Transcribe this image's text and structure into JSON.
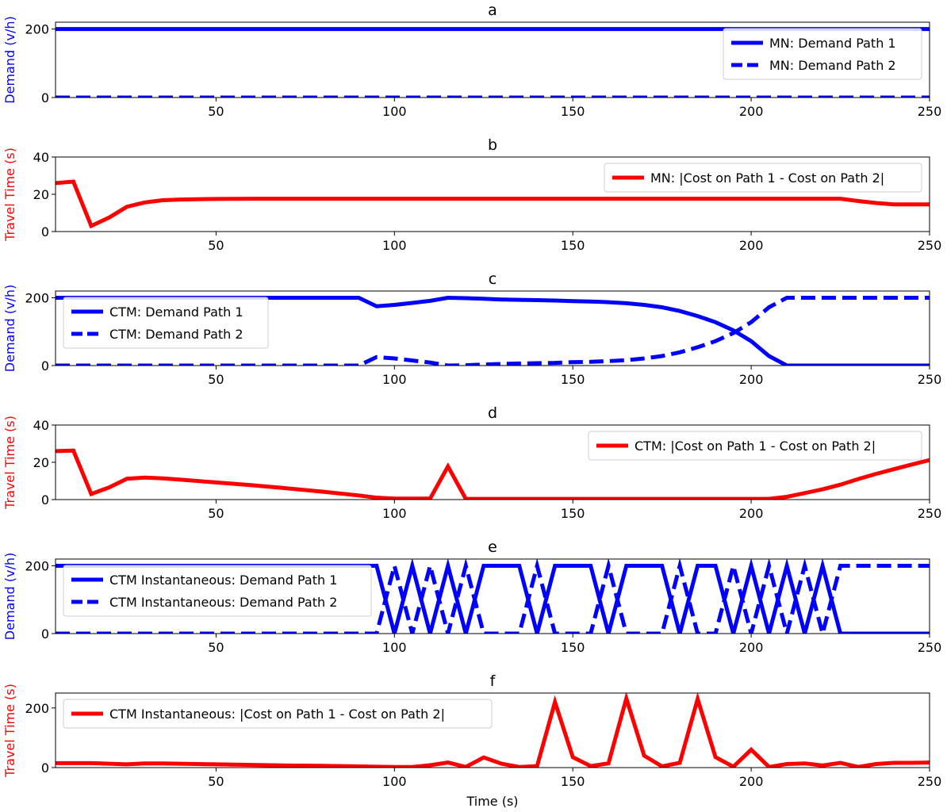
{
  "colors": {
    "blue": "#0000ff",
    "red": "#ff0000",
    "axis": "#000000",
    "legend_border": "#cccccc"
  },
  "chart_data": [
    {
      "type": "line",
      "title": "a",
      "xlabel": "",
      "ylabel": "Demand (v/h)",
      "ylabel_color": "#0000ff",
      "xlim": [
        5,
        250
      ],
      "ylim": [
        0,
        220
      ],
      "xticks": [
        50,
        100,
        150,
        200,
        250
      ],
      "yticks": [
        0,
        200
      ],
      "legend_position": "upper right",
      "series": [
        {
          "name": "MN: Demand Path 1",
          "color": "#0000ff",
          "dash": "solid",
          "x": [
            5,
            250
          ],
          "y": [
            200,
            200
          ]
        },
        {
          "name": "MN: Demand Path 2",
          "color": "#0000ff",
          "dash": "dashed",
          "x": [
            5,
            250
          ],
          "y": [
            0,
            0
          ]
        }
      ]
    },
    {
      "type": "line",
      "title": "b",
      "xlabel": "",
      "ylabel": "Travel Time (s)",
      "ylabel_color": "#ff0000",
      "xlim": [
        5,
        250
      ],
      "ylim": [
        0,
        40
      ],
      "xticks": [
        50,
        100,
        150,
        200,
        250
      ],
      "yticks": [
        0,
        20,
        40
      ],
      "legend_position": "upper right",
      "series": [
        {
          "name": "MN: |Cost on Path 1 - Cost on Path 2|",
          "color": "#ff0000",
          "dash": "solid",
          "x": [
            5,
            10,
            15,
            20,
            25,
            30,
            35,
            40,
            50,
            60,
            100,
            150,
            200,
            225,
            230,
            235,
            240,
            250
          ],
          "y": [
            26,
            26.8,
            3,
            7.5,
            13.3,
            15.6,
            16.8,
            17.2,
            17.5,
            17.6,
            17.6,
            17.6,
            17.6,
            17.6,
            16.4,
            15.3,
            14.6,
            14.6
          ]
        }
      ]
    },
    {
      "type": "line",
      "title": "c",
      "xlabel": "",
      "ylabel": "Demand (v/h)",
      "ylabel_color": "#0000ff",
      "xlim": [
        5,
        250
      ],
      "ylim": [
        0,
        220
      ],
      "xticks": [
        50,
        100,
        150,
        200,
        250
      ],
      "yticks": [
        0,
        200
      ],
      "legend_position": "upper left",
      "series": [
        {
          "name": "CTM: Demand Path 1",
          "color": "#0000ff",
          "dash": "solid",
          "x": [
            5,
            90,
            95,
            100,
            105,
            110,
            115,
            120,
            125,
            130,
            135,
            140,
            145,
            150,
            155,
            160,
            165,
            170,
            175,
            180,
            185,
            190,
            195,
            200,
            205,
            210,
            250
          ],
          "y": [
            200,
            200,
            175,
            179,
            185,
            191,
            200,
            199,
            197,
            195,
            194,
            193,
            192,
            190,
            189,
            187,
            184,
            179,
            172,
            161,
            146,
            128,
            104,
            72,
            28,
            0,
            0
          ]
        },
        {
          "name": "CTM: Demand Path 2",
          "color": "#0000ff",
          "dash": "dashed",
          "x": [
            5,
            90,
            95,
            100,
            105,
            110,
            115,
            120,
            125,
            130,
            135,
            140,
            145,
            150,
            155,
            160,
            165,
            170,
            175,
            180,
            185,
            190,
            195,
            200,
            205,
            210,
            250
          ],
          "y": [
            0,
            0,
            25,
            21,
            15,
            9,
            0,
            1,
            3,
            5,
            6,
            7,
            8,
            10,
            11,
            13,
            16,
            21,
            28,
            39,
            54,
            72,
            96,
            128,
            172,
            200,
            200
          ]
        }
      ]
    },
    {
      "type": "line",
      "title": "d",
      "xlabel": "",
      "ylabel": "Travel Time (s)",
      "ylabel_color": "#ff0000",
      "xlim": [
        5,
        250
      ],
      "ylim": [
        0,
        40
      ],
      "xticks": [
        50,
        100,
        150,
        200,
        250
      ],
      "yticks": [
        0,
        20,
        40
      ],
      "legend_position": "upper right",
      "series": [
        {
          "name": "CTM: |Cost on Path 1 - Cost on Path 2|",
          "color": "#ff0000",
          "dash": "solid",
          "x": [
            5,
            10,
            15,
            20,
            25,
            30,
            35,
            40,
            50,
            60,
            70,
            80,
            90,
            95,
            100,
            105,
            110,
            115,
            120,
            150,
            200,
            205,
            210,
            215,
            220,
            225,
            230,
            235,
            240,
            245,
            250
          ],
          "y": [
            26,
            26.3,
            3,
            6.5,
            11.2,
            11.8,
            11.4,
            10.7,
            9.2,
            7.7,
            6.0,
            4.2,
            2.2,
            1.0,
            0.5,
            0.5,
            0.5,
            17.8,
            0.4,
            0.4,
            0.4,
            0.4,
            1.5,
            3.5,
            5.5,
            8,
            11,
            13.8,
            16.3,
            18.8,
            21.2
          ]
        }
      ]
    },
    {
      "type": "line",
      "title": "e",
      "xlabel": "",
      "ylabel": "Demand (v/h)",
      "ylabel_color": "#0000ff",
      "xlim": [
        5,
        250
      ],
      "ylim": [
        0,
        220
      ],
      "xticks": [
        50,
        100,
        150,
        200,
        250
      ],
      "yticks": [
        0,
        200
      ],
      "legend_position": "upper left",
      "series": [
        {
          "name": "CTM Instantaneous: Demand Path 1",
          "color": "#0000ff",
          "dash": "solid",
          "x": [
            5,
            95,
            100,
            105,
            110,
            115,
            120,
            125,
            135,
            140,
            145,
            155,
            160,
            165,
            175,
            180,
            185,
            190,
            195,
            200,
            205,
            210,
            215,
            220,
            225,
            250
          ],
          "y": [
            200,
            200,
            0,
            200,
            0,
            200,
            0,
            200,
            200,
            0,
            200,
            200,
            0,
            200,
            200,
            0,
            200,
            200,
            0,
            200,
            0,
            200,
            0,
            200,
            0,
            0
          ]
        },
        {
          "name": "CTM Instantaneous: Demand Path 2",
          "color": "#0000ff",
          "dash": "dashed",
          "x": [
            5,
            95,
            100,
            105,
            110,
            115,
            120,
            125,
            135,
            140,
            145,
            155,
            160,
            165,
            175,
            180,
            185,
            190,
            195,
            200,
            205,
            210,
            215,
            220,
            225,
            250
          ],
          "y": [
            0,
            0,
            200,
            0,
            200,
            0,
            200,
            0,
            0,
            200,
            0,
            0,
            200,
            0,
            0,
            200,
            0,
            0,
            200,
            0,
            200,
            0,
            200,
            0,
            200,
            200
          ]
        }
      ]
    },
    {
      "type": "line",
      "title": "f",
      "xlabel": "Time (s)",
      "ylabel": "Travel Time (s)",
      "ylabel_color": "#ff0000",
      "xlim": [
        5,
        250
      ],
      "ylim": [
        0,
        250
      ],
      "xticks": [
        50,
        100,
        150,
        200,
        250
      ],
      "yticks": [
        0,
        200
      ],
      "legend_position": "upper left",
      "series": [
        {
          "name": "CTM Instantaneous: |Cost on Path 1 - Cost on Path 2|",
          "color": "#ff0000",
          "dash": "solid",
          "x": [
            5,
            10,
            15,
            20,
            25,
            30,
            35,
            40,
            50,
            60,
            70,
            80,
            90,
            95,
            100,
            105,
            110,
            115,
            120,
            125,
            130,
            135,
            140,
            145,
            150,
            155,
            160,
            165,
            170,
            175,
            180,
            185,
            190,
            195,
            200,
            205,
            210,
            215,
            220,
            225,
            230,
            235,
            240,
            245,
            250
          ],
          "y": [
            15,
            15,
            15,
            13,
            11,
            14,
            14,
            13,
            11,
            9,
            7,
            6,
            4,
            3,
            2,
            2,
            8,
            17,
            2,
            34,
            13,
            2,
            5,
            220,
            35,
            5,
            14,
            232,
            40,
            4,
            16,
            230,
            35,
            3,
            60,
            2,
            12,
            14,
            7,
            16,
            2,
            12,
            16,
            16,
            17
          ]
        }
      ]
    }
  ]
}
